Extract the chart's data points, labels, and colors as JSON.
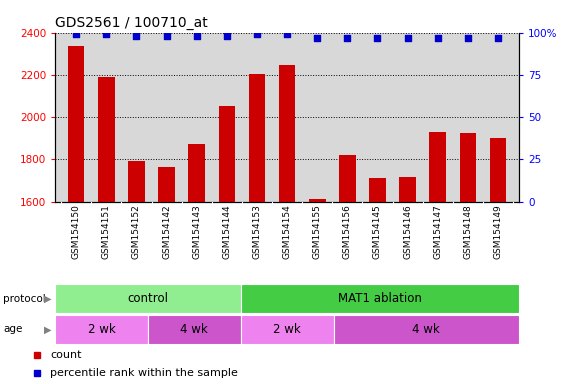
{
  "title": "GDS2561 / 100710_at",
  "samples": [
    "GSM154150",
    "GSM154151",
    "GSM154152",
    "GSM154142",
    "GSM154143",
    "GSM154144",
    "GSM154153",
    "GSM154154",
    "GSM154155",
    "GSM154156",
    "GSM154145",
    "GSM154146",
    "GSM154147",
    "GSM154148",
    "GSM154149"
  ],
  "counts": [
    2335,
    2190,
    1790,
    1765,
    1875,
    2055,
    2205,
    2245,
    1610,
    1820,
    1710,
    1715,
    1930,
    1925,
    1900
  ],
  "percentile_ranks": [
    99,
    99,
    98,
    98,
    98,
    98,
    99,
    99,
    97,
    97,
    97,
    97,
    97,
    97,
    97
  ],
  "bar_color": "#cc0000",
  "dot_color": "#0000cc",
  "ylim_left": [
    1600,
    2400
  ],
  "ylim_right": [
    0,
    100
  ],
  "yticks_left": [
    1600,
    1800,
    2000,
    2200,
    2400
  ],
  "yticks_right": [
    0,
    25,
    50,
    75,
    100
  ],
  "protocol_groups": [
    {
      "label": "control",
      "start": 0,
      "end": 6,
      "color": "#90ee90"
    },
    {
      "label": "MAT1 ablation",
      "start": 6,
      "end": 15,
      "color": "#44cc44"
    }
  ],
  "age_groups": [
    {
      "label": "2 wk",
      "start": 0,
      "end": 3,
      "color": "#ee82ee"
    },
    {
      "label": "4 wk",
      "start": 3,
      "end": 6,
      "color": "#cc55cc"
    },
    {
      "label": "2 wk",
      "start": 6,
      "end": 9,
      "color": "#ee82ee"
    },
    {
      "label": "4 wk",
      "start": 9,
      "end": 15,
      "color": "#cc55cc"
    }
  ],
  "background_color": "#ffffff",
  "plot_bg_color": "#d8d8d8",
  "title_fontsize": 10,
  "tick_fontsize": 7.5,
  "label_fontsize": 8
}
